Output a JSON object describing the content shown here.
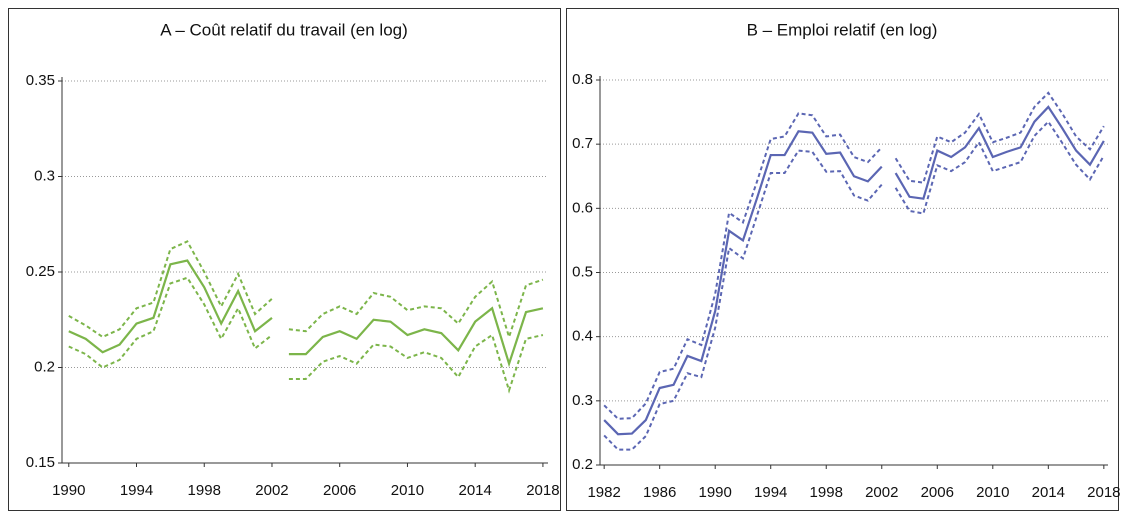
{
  "chart_data": [
    {
      "type": "line",
      "title": "A – Coût relatif du travail (en log)",
      "x": [
        1990,
        1991,
        1992,
        1993,
        1994,
        1995,
        1996,
        1997,
        1998,
        1999,
        2000,
        2001,
        2002,
        null,
        2003,
        2004,
        2005,
        2006,
        2007,
        2008,
        2009,
        2010,
        2011,
        2012,
        2013,
        2014,
        2015,
        2016,
        2017,
        2018
      ],
      "series": [
        {
          "color": "#7cb54a",
          "dashed": false,
          "values": [
            0.219,
            0.215,
            0.208,
            0.212,
            0.223,
            0.226,
            0.254,
            0.256,
            0.242,
            0.223,
            0.24,
            0.219,
            0.226,
            null,
            0.207,
            0.207,
            0.216,
            0.219,
            0.215,
            0.225,
            0.224,
            0.217,
            0.22,
            0.218,
            0.209,
            0.224,
            0.231,
            0.202,
            0.229,
            0.231
          ]
        },
        {
          "color": "#7cb54a",
          "dashed": true,
          "values": [
            0.227,
            0.222,
            0.216,
            0.22,
            0.231,
            0.234,
            0.262,
            0.266,
            0.25,
            0.232,
            0.249,
            0.228,
            0.236,
            null,
            0.22,
            0.219,
            0.228,
            0.232,
            0.228,
            0.239,
            0.237,
            0.23,
            0.232,
            0.231,
            0.223,
            0.237,
            0.245,
            0.216,
            0.243,
            0.246
          ]
        },
        {
          "color": "#7cb54a",
          "dashed": true,
          "values": [
            0.211,
            0.207,
            0.2,
            0.204,
            0.215,
            0.219,
            0.244,
            0.247,
            0.233,
            0.215,
            0.231,
            0.21,
            0.217,
            null,
            0.194,
            0.194,
            0.203,
            0.206,
            0.202,
            0.212,
            0.211,
            0.205,
            0.208,
            0.205,
            0.195,
            0.211,
            0.217,
            0.188,
            0.215,
            0.217
          ]
        }
      ],
      "xlim": [
        1989.6,
        2018.3
      ],
      "xticks": [
        1990,
        1994,
        1998,
        2002,
        2006,
        2010,
        2014,
        2018
      ],
      "ylim": [
        0.15,
        0.35
      ],
      "yticks": [
        0.15,
        0.2,
        0.25,
        0.3,
        0.35
      ],
      "grid": true
    },
    {
      "type": "line",
      "title": "B – Emploi relatif (en log)",
      "x": [
        1982,
        1983,
        1984,
        1985,
        1986,
        1987,
        1988,
        1989,
        1990,
        1991,
        1992,
        1993,
        1994,
        1995,
        1996,
        1997,
        1998,
        1999,
        2000,
        2001,
        2002,
        null,
        2003,
        2004,
        2005,
        2006,
        2007,
        2008,
        2009,
        2010,
        2011,
        2012,
        2013,
        2014,
        2015,
        2016,
        2017,
        2018
      ],
      "series": [
        {
          "color": "#5b66b3",
          "dashed": false,
          "values": [
            0.27,
            0.248,
            0.249,
            0.27,
            0.32,
            0.325,
            0.37,
            0.362,
            0.44,
            0.565,
            0.55,
            0.615,
            0.683,
            0.683,
            0.72,
            0.718,
            0.685,
            0.687,
            0.65,
            0.642,
            0.665,
            null,
            0.655,
            0.618,
            0.615,
            0.69,
            0.68,
            0.695,
            0.725,
            0.68,
            0.688,
            0.695,
            0.735,
            0.758,
            0.725,
            0.69,
            0.668,
            0.705
          ]
        },
        {
          "color": "#5b66b3",
          "dashed": true,
          "values": [
            0.293,
            0.272,
            0.273,
            0.296,
            0.345,
            0.35,
            0.396,
            0.387,
            0.467,
            0.593,
            0.578,
            0.641,
            0.708,
            0.712,
            0.748,
            0.745,
            0.712,
            0.715,
            0.68,
            0.672,
            0.695,
            null,
            0.678,
            0.643,
            0.64,
            0.712,
            0.703,
            0.718,
            0.747,
            0.703,
            0.71,
            0.718,
            0.758,
            0.78,
            0.748,
            0.712,
            0.692,
            0.728
          ]
        },
        {
          "color": "#5b66b3",
          "dashed": true,
          "values": [
            0.246,
            0.224,
            0.224,
            0.245,
            0.295,
            0.3,
            0.343,
            0.337,
            0.414,
            0.538,
            0.522,
            0.588,
            0.655,
            0.655,
            0.69,
            0.688,
            0.657,
            0.658,
            0.62,
            0.612,
            0.637,
            null,
            0.632,
            0.596,
            0.592,
            0.667,
            0.658,
            0.672,
            0.703,
            0.658,
            0.665,
            0.672,
            0.713,
            0.735,
            0.702,
            0.668,
            0.645,
            0.682
          ]
        }
      ],
      "xlim": [
        1981.7,
        2018.3
      ],
      "xticks": [
        1982,
        1986,
        1990,
        1994,
        1998,
        2002,
        2006,
        2010,
        2014,
        2018
      ],
      "ylim": [
        0.2,
        0.8
      ],
      "yticks": [
        0.2,
        0.3,
        0.4,
        0.5,
        0.6,
        0.7,
        0.8
      ],
      "grid": true
    }
  ]
}
